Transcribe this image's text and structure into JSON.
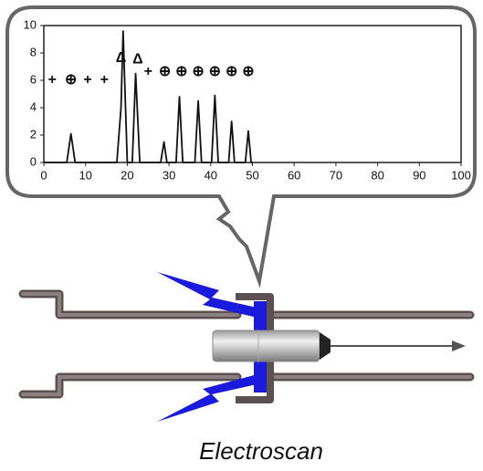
{
  "chart_data": {
    "type": "line",
    "x": [
      0,
      5.5,
      6.5,
      7.5,
      17.5,
      18.5,
      19,
      20,
      21.2,
      22,
      23,
      28,
      28.8,
      29.5,
      31.7,
      32.5,
      33.3,
      36.2,
      37,
      37.8,
      40.2,
      41,
      41.8,
      44.3,
      45,
      45.7,
      48.3,
      49,
      49.7,
      50
    ],
    "series": [
      {
        "color": "#111111",
        "values": [
          0,
          0,
          2.1,
          0,
          0,
          4,
          9.6,
          0,
          0,
          6.5,
          0,
          0,
          1.5,
          0,
          0,
          4.8,
          0,
          0,
          4.5,
          0,
          0,
          4.9,
          0,
          0,
          3.0,
          0,
          0,
          2.3,
          0,
          0
        ]
      }
    ],
    "xlim": [
      0,
      100
    ],
    "ylim": [
      0,
      10
    ],
    "xticks": [
      0,
      10,
      20,
      30,
      40,
      50,
      60,
      70,
      80,
      90,
      100
    ],
    "yticks": [
      0,
      2,
      4,
      6,
      8,
      10
    ],
    "markers": [
      {
        "symbol": "+",
        "x": 2,
        "y": 6
      },
      {
        "symbol": "⊕",
        "x": 6.5,
        "y": 6
      },
      {
        "symbol": "+",
        "x": 10.5,
        "y": 6
      },
      {
        "symbol": "+",
        "x": 14.5,
        "y": 6
      },
      {
        "symbol": "Δ",
        "x": 18.5,
        "y": 7.6
      },
      {
        "symbol": "Δ",
        "x": 22.5,
        "y": 7.5
      },
      {
        "symbol": "+",
        "x": 25,
        "y": 6.6
      },
      {
        "symbol": "⊕",
        "x": 29,
        "y": 6.6
      },
      {
        "symbol": "⊕",
        "x": 33,
        "y": 6.6
      },
      {
        "symbol": "⊕",
        "x": 37,
        "y": 6.6
      },
      {
        "symbol": "⊕",
        "x": 41,
        "y": 6.6
      },
      {
        "symbol": "⊕",
        "x": 45,
        "y": 6.6
      },
      {
        "symbol": "⊕",
        "x": 49,
        "y": 6.6
      }
    ]
  },
  "caption": "Electroscan"
}
